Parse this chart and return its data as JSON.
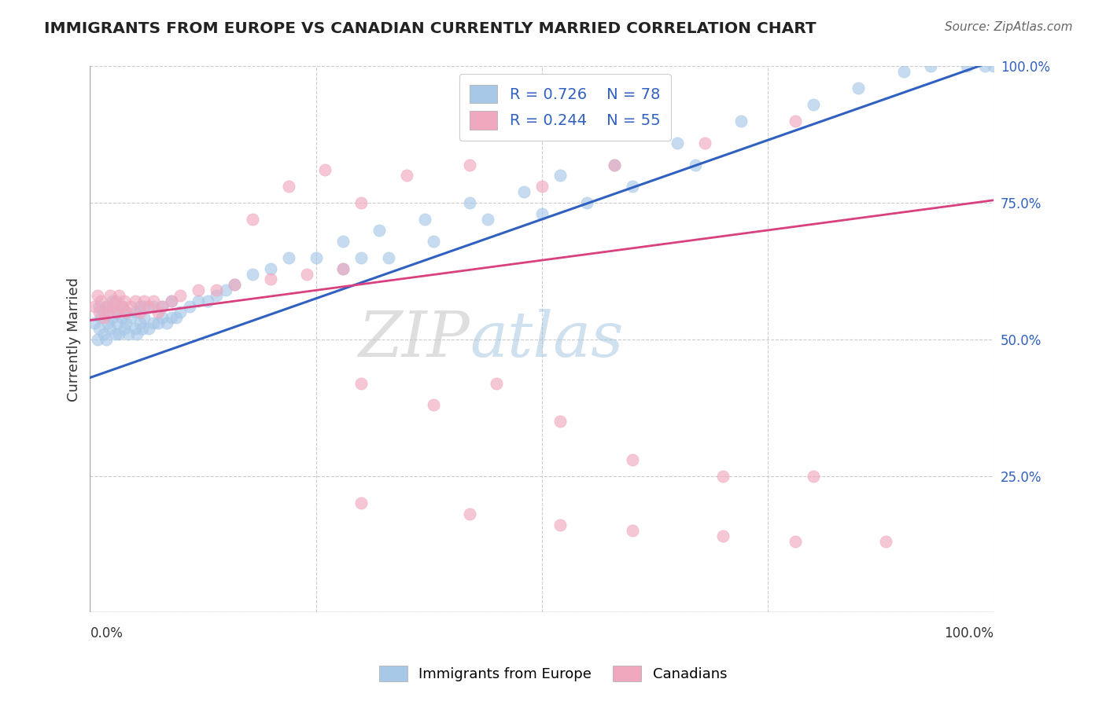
{
  "title": "IMMIGRANTS FROM EUROPE VS CANADIAN CURRENTLY MARRIED CORRELATION CHART",
  "source": "Source: ZipAtlas.com",
  "ylabel": "Currently Married",
  "xlim": [
    0.0,
    1.0
  ],
  "ylim": [
    0.0,
    1.0
  ],
  "blue_R": 0.726,
  "blue_N": 78,
  "pink_R": 0.244,
  "pink_N": 55,
  "blue_color": "#a8c8e8",
  "pink_color": "#f0a8be",
  "blue_line_color": "#3060c0",
  "pink_line_color": "#d84080",
  "legend_label_blue": "Immigrants from Europe",
  "legend_label_pink": "Canadians",
  "blue_line_x0": 0.0,
  "blue_line_y0": 0.43,
  "blue_line_x1": 1.0,
  "blue_line_y1": 1.01,
  "pink_line_x0": 0.0,
  "pink_line_y0": 0.535,
  "pink_line_x1": 1.0,
  "pink_line_y1": 0.755,
  "blue_pts_x": [
    0.005,
    0.008,
    0.01,
    0.01,
    0.012,
    0.015,
    0.015,
    0.018,
    0.02,
    0.02,
    0.022,
    0.025,
    0.025,
    0.028,
    0.03,
    0.03,
    0.032,
    0.035,
    0.035,
    0.038,
    0.04,
    0.04,
    0.042,
    0.045,
    0.05,
    0.05,
    0.052,
    0.055,
    0.055,
    0.058,
    0.06,
    0.06,
    0.065,
    0.07,
    0.07,
    0.075,
    0.08,
    0.08,
    0.085,
    0.09,
    0.09,
    0.095,
    0.1,
    0.11,
    0.12,
    0.13,
    0.14,
    0.15,
    0.16,
    0.18,
    0.2,
    0.22,
    0.25,
    0.28,
    0.32,
    0.37,
    0.42,
    0.48,
    0.52,
    0.58,
    0.65,
    0.72,
    0.8,
    0.85,
    0.9,
    0.93,
    0.97,
    0.99,
    1.0,
    0.28,
    0.3,
    0.33,
    0.38,
    0.44,
    0.5,
    0.55,
    0.6,
    0.67
  ],
  "blue_pts_y": [
    0.53,
    0.5,
    0.56,
    0.52,
    0.54,
    0.51,
    0.55,
    0.5,
    0.53,
    0.56,
    0.52,
    0.54,
    0.57,
    0.51,
    0.53,
    0.55,
    0.51,
    0.54,
    0.56,
    0.52,
    0.53,
    0.55,
    0.51,
    0.54,
    0.52,
    0.55,
    0.51,
    0.53,
    0.56,
    0.52,
    0.54,
    0.56,
    0.52,
    0.53,
    0.56,
    0.53,
    0.54,
    0.56,
    0.53,
    0.54,
    0.57,
    0.54,
    0.55,
    0.56,
    0.57,
    0.57,
    0.58,
    0.59,
    0.6,
    0.62,
    0.63,
    0.65,
    0.65,
    0.68,
    0.7,
    0.72,
    0.75,
    0.77,
    0.8,
    0.82,
    0.86,
    0.9,
    0.93,
    0.96,
    0.99,
    1.0,
    1.0,
    1.0,
    1.0,
    0.63,
    0.65,
    0.65,
    0.68,
    0.72,
    0.73,
    0.75,
    0.78,
    0.82
  ],
  "pink_pts_x": [
    0.005,
    0.008,
    0.01,
    0.012,
    0.015,
    0.018,
    0.02,
    0.022,
    0.025,
    0.028,
    0.03,
    0.032,
    0.035,
    0.038,
    0.04,
    0.045,
    0.05,
    0.055,
    0.06,
    0.065,
    0.07,
    0.075,
    0.08,
    0.09,
    0.1,
    0.12,
    0.14,
    0.16,
    0.2,
    0.24,
    0.28,
    0.18,
    0.22,
    0.26,
    0.3,
    0.35,
    0.42,
    0.5,
    0.58,
    0.68,
    0.78,
    0.3,
    0.38,
    0.45,
    0.52,
    0.6,
    0.7,
    0.8,
    0.3,
    0.42,
    0.52,
    0.6,
    0.7,
    0.78,
    0.88
  ],
  "pink_pts_y": [
    0.56,
    0.58,
    0.55,
    0.57,
    0.54,
    0.56,
    0.55,
    0.58,
    0.56,
    0.57,
    0.55,
    0.58,
    0.56,
    0.57,
    0.55,
    0.56,
    0.57,
    0.55,
    0.57,
    0.56,
    0.57,
    0.55,
    0.56,
    0.57,
    0.58,
    0.59,
    0.59,
    0.6,
    0.61,
    0.62,
    0.63,
    0.72,
    0.78,
    0.81,
    0.75,
    0.8,
    0.82,
    0.78,
    0.82,
    0.86,
    0.9,
    0.42,
    0.38,
    0.42,
    0.35,
    0.28,
    0.25,
    0.25,
    0.2,
    0.18,
    0.16,
    0.15,
    0.14,
    0.13,
    0.13
  ]
}
